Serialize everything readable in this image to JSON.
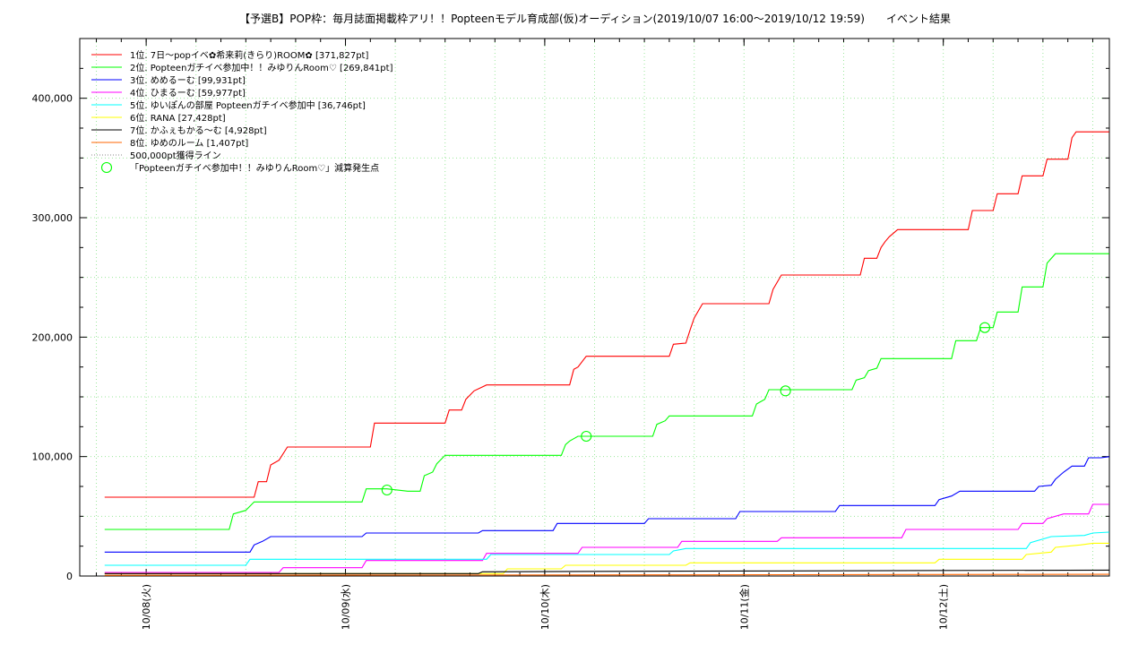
{
  "chart_data": {
    "type": "line",
    "title": "【予選B】POP枠：毎月誌面掲載枠アリ！！Popteenモデル育成部(仮)オーディション(2019/10/07 16:00〜2019/10/12 19:59)　　イベント結果",
    "xlabel": "",
    "ylabel": "",
    "x_range": [
      "2019-10-07 16:00",
      "2019-10-12 20:00"
    ],
    "ylim": [
      0,
      450000
    ],
    "x_ticks": [
      {
        "t": "2019-10-08 00:00",
        "label": "10/08(火)"
      },
      {
        "t": "2019-10-09 00:00",
        "label": "10/09(水)"
      },
      {
        "t": "2019-10-10 00:00",
        "label": "10/10(木)"
      },
      {
        "t": "2019-10-11 00:00",
        "label": "10/11(金)"
      },
      {
        "t": "2019-10-12 00:00",
        "label": "10/12(土)"
      }
    ],
    "y_ticks": [
      {
        "v": 0,
        "label": "0"
      },
      {
        "v": 100000,
        "label": "100,000"
      },
      {
        "v": 200000,
        "label": "200,000"
      },
      {
        "v": 300000,
        "label": "300,000"
      },
      {
        "v": 400000,
        "label": "400,000"
      }
    ],
    "grid": true,
    "legend_position": "top-left",
    "series": [
      {
        "name": "1位. 7日〜popイベ✿希来莉(きらり)ROOM✿ [371,827pt]",
        "color": "#ff0000",
        "points": [
          [
            "10-07 19:00",
            66000
          ],
          [
            "10-08 13:00",
            66000
          ],
          [
            "10-08 13:30",
            79000
          ],
          [
            "10-08 14:30",
            79000
          ],
          [
            "10-08 15:00",
            93000
          ],
          [
            "10-08 16:00",
            97000
          ],
          [
            "10-08 17:00",
            108000
          ],
          [
            "10-09 03:00",
            108000
          ],
          [
            "10-09 03:30",
            128000
          ],
          [
            "10-09 12:00",
            128000
          ],
          [
            "10-09 12:30",
            139000
          ],
          [
            "10-09 14:00",
            139000
          ],
          [
            "10-09 14:30",
            148000
          ],
          [
            "10-09 15:30",
            155000
          ],
          [
            "10-09 17:00",
            160000
          ],
          [
            "10-10 03:00",
            160000
          ],
          [
            "10-10 03:30",
            173000
          ],
          [
            "10-10 04:00",
            175000
          ],
          [
            "10-10 05:00",
            184000
          ],
          [
            "10-10 15:00",
            184000
          ],
          [
            "10-10 15:30",
            194000
          ],
          [
            "10-10 17:00",
            195000
          ],
          [
            "10-10 17:30",
            206000
          ],
          [
            "10-10 18:00",
            216000
          ],
          [
            "10-10 19:00",
            228000
          ],
          [
            "10-11 03:00",
            228000
          ],
          [
            "10-11 03:30",
            240000
          ],
          [
            "10-11 04:30",
            252000
          ],
          [
            "10-11 14:00",
            252000
          ],
          [
            "10-11 14:30",
            266000
          ],
          [
            "10-11 16:00",
            266000
          ],
          [
            "10-11 16:30",
            275000
          ],
          [
            "10-11 17:00",
            280000
          ],
          [
            "10-11 17:30",
            284000
          ],
          [
            "10-11 18:30",
            290000
          ],
          [
            "10-12 03:00",
            290000
          ],
          [
            "10-12 03:30",
            306000
          ],
          [
            "10-12 06:00",
            306000
          ],
          [
            "10-12 06:30",
            320000
          ],
          [
            "10-12 09:00",
            320000
          ],
          [
            "10-12 09:30",
            335000
          ],
          [
            "10-12 12:00",
            335000
          ],
          [
            "10-12 12:30",
            349000
          ],
          [
            "10-12 15:00",
            349000
          ],
          [
            "10-12 15:30",
            367000
          ],
          [
            "10-12 16:00",
            371827
          ],
          [
            "10-12 19:59",
            371827
          ]
        ]
      },
      {
        "name": "2位. Popteenガチイベ参加中！！みゆりんRoom♡ [269,841pt]",
        "color": "#00ff00",
        "points": [
          [
            "10-07 19:00",
            39000
          ],
          [
            "10-08 10:00",
            39000
          ],
          [
            "10-08 10:30",
            52000
          ],
          [
            "10-08 12:00",
            55000
          ],
          [
            "10-08 13:00",
            62000
          ],
          [
            "10-09 02:00",
            62000
          ],
          [
            "10-09 02:30",
            73000
          ],
          [
            "10-09 05:00",
            73000
          ],
          [
            "10-09 07:30",
            71000
          ],
          [
            "10-09 09:00",
            71000
          ],
          [
            "10-09 09:30",
            84000
          ],
          [
            "10-09 10:30",
            87000
          ],
          [
            "10-09 11:00",
            94000
          ],
          [
            "10-09 12:00",
            101000
          ],
          [
            "10-10 02:00",
            101000
          ],
          [
            "10-10 02:30",
            110000
          ],
          [
            "10-10 03:00",
            113000
          ],
          [
            "10-10 04:00",
            117000
          ],
          [
            "10-10 13:00",
            117000
          ],
          [
            "10-10 13:30",
            127000
          ],
          [
            "10-10 14:30",
            130000
          ],
          [
            "10-10 15:00",
            134000
          ],
          [
            "10-11 01:00",
            134000
          ],
          [
            "10-11 01:30",
            144000
          ],
          [
            "10-11 02:30",
            148000
          ],
          [
            "10-11 03:00",
            156000
          ],
          [
            "10-11 13:00",
            156000
          ],
          [
            "10-11 13:30",
            164000
          ],
          [
            "10-11 14:30",
            166000
          ],
          [
            "10-11 15:00",
            172000
          ],
          [
            "10-11 16:00",
            174000
          ],
          [
            "10-11 16:30",
            182000
          ],
          [
            "10-12 01:00",
            182000
          ],
          [
            "10-12 01:30",
            197000
          ],
          [
            "10-12 04:00",
            197000
          ],
          [
            "10-12 04:30",
            208000
          ],
          [
            "10-12 06:00",
            208000
          ],
          [
            "10-12 06:30",
            221000
          ],
          [
            "10-12 09:00",
            221000
          ],
          [
            "10-12 09:30",
            242000
          ],
          [
            "10-12 12:00",
            242000
          ],
          [
            "10-12 12:30",
            262000
          ],
          [
            "10-12 13:30",
            269841
          ],
          [
            "10-12 19:59",
            269841
          ]
        ]
      },
      {
        "name": "3位. めめるーむ [99,931pt]",
        "color": "#0000ff",
        "points": [
          [
            "10-07 19:00",
            20000
          ],
          [
            "10-08 12:30",
            20000
          ],
          [
            "10-08 13:00",
            26000
          ],
          [
            "10-08 14:00",
            29000
          ],
          [
            "10-08 15:00",
            33000
          ],
          [
            "10-09 02:00",
            33000
          ],
          [
            "10-09 02:30",
            36000
          ],
          [
            "10-09 16:00",
            36000
          ],
          [
            "10-09 16:30",
            38000
          ],
          [
            "10-10 01:00",
            38000
          ],
          [
            "10-10 01:30",
            44000
          ],
          [
            "10-10 12:00",
            44000
          ],
          [
            "10-10 12:30",
            48000
          ],
          [
            "10-10 23:00",
            48000
          ],
          [
            "10-10 23:30",
            54000
          ],
          [
            "10-11 11:00",
            54000
          ],
          [
            "10-11 11:30",
            59000
          ],
          [
            "10-11 23:00",
            59000
          ],
          [
            "10-11 23:30",
            64000
          ],
          [
            "10-12 01:00",
            67000
          ],
          [
            "10-12 02:00",
            71000
          ],
          [
            "10-12 11:00",
            71000
          ],
          [
            "10-12 11:30",
            75000
          ],
          [
            "10-12 13:00",
            76000
          ],
          [
            "10-12 13:30",
            81000
          ],
          [
            "10-12 14:30",
            87000
          ],
          [
            "10-12 15:30",
            92000
          ],
          [
            "10-12 17:00",
            92000
          ],
          [
            "10-12 17:30",
            99000
          ],
          [
            "10-12 19:00",
            99000
          ],
          [
            "10-12 19:59",
            99931
          ]
        ]
      },
      {
        "name": "4位. ひまるーむ [59,977pt]",
        "color": "#ff00ff",
        "points": [
          [
            "10-07 19:00",
            3000
          ],
          [
            "10-08 16:00",
            3000
          ],
          [
            "10-08 16:30",
            7000
          ],
          [
            "10-09 02:00",
            7000
          ],
          [
            "10-09 02:30",
            13000
          ],
          [
            "10-09 16:30",
            13000
          ],
          [
            "10-09 17:00",
            19000
          ],
          [
            "10-10 04:00",
            19000
          ],
          [
            "10-10 04:30",
            24000
          ],
          [
            "10-10 16:00",
            24000
          ],
          [
            "10-10 16:30",
            29000
          ],
          [
            "10-11 04:00",
            29000
          ],
          [
            "10-11 04:30",
            32000
          ],
          [
            "10-11 19:00",
            32000
          ],
          [
            "10-11 19:30",
            39000
          ],
          [
            "10-12 09:00",
            39000
          ],
          [
            "10-12 09:30",
            44000
          ],
          [
            "10-12 12:00",
            44000
          ],
          [
            "10-12 12:30",
            48000
          ],
          [
            "10-12 14:30",
            52000
          ],
          [
            "10-12 17:30",
            52000
          ],
          [
            "10-12 18:00",
            59977
          ],
          [
            "10-12 19:59",
            59977
          ]
        ]
      },
      {
        "name": "5位. ゆいぽんの部屋 Popteenガチイベ参加中 [36,746pt]",
        "color": "#00ffff",
        "points": [
          [
            "10-07 19:00",
            9000
          ],
          [
            "10-08 12:00",
            9000
          ],
          [
            "10-08 12:30",
            14000
          ],
          [
            "10-09 17:00",
            14000
          ],
          [
            "10-09 17:30",
            18000
          ],
          [
            "10-10 15:00",
            18000
          ],
          [
            "10-10 15:30",
            21000
          ],
          [
            "10-10 17:00",
            23000
          ],
          [
            "10-12 10:00",
            23000
          ],
          [
            "10-12 10:30",
            28000
          ],
          [
            "10-12 13:00",
            33000
          ],
          [
            "10-12 17:00",
            34000
          ],
          [
            "10-12 18:00",
            36000
          ],
          [
            "10-12 19:59",
            36746
          ]
        ]
      },
      {
        "name": "6位. RANA [27,428pt]",
        "color": "#ffff00",
        "points": [
          [
            "10-07 19:00",
            2000
          ],
          [
            "10-09 19:00",
            2000
          ],
          [
            "10-09 19:30",
            6000
          ],
          [
            "10-10 02:00",
            6000
          ],
          [
            "10-10 02:30",
            9000
          ],
          [
            "10-10 17:00",
            9000
          ],
          [
            "10-10 17:30",
            11000
          ],
          [
            "10-11 23:00",
            11000
          ],
          [
            "10-11 23:30",
            14000
          ],
          [
            "10-12 09:30",
            14000
          ],
          [
            "10-12 10:00",
            18000
          ],
          [
            "10-12 13:00",
            20000
          ],
          [
            "10-12 13:30",
            24000
          ],
          [
            "10-12 16:30",
            26000
          ],
          [
            "10-12 18:00",
            27428
          ],
          [
            "10-12 19:59",
            27428
          ]
        ]
      },
      {
        "name": "7位. かふぇもかる〜む [4,928pt]",
        "color": "#000000",
        "points": [
          [
            "10-07 19:00",
            2000
          ],
          [
            "10-09 16:00",
            2000
          ],
          [
            "10-09 16:30",
            3500
          ],
          [
            "10-10 12:00",
            4000
          ],
          [
            "10-12 19:59",
            4928
          ]
        ]
      },
      {
        "name": "8位. ゆめのルーム [1,407pt]",
        "color": "#ff6600",
        "points": [
          [
            "10-07 19:00",
            600
          ],
          [
            "10-10 12:00",
            1000
          ],
          [
            "10-12 19:59",
            1407
          ]
        ]
      }
    ],
    "threshold_line": {
      "name": "500,000pt獲得ライン",
      "value": 500000,
      "color": "#888888"
    },
    "marker_series": {
      "name": "「Popteenガチイベ参加中！！みゆりんRoom♡」減算発生点",
      "color": "#00ff00",
      "points": [
        [
          "10-09 05:00",
          72000
        ],
        [
          "10-10 05:00",
          117000
        ],
        [
          "10-11 05:00",
          155000
        ],
        [
          "10-12 05:00",
          208000
        ]
      ]
    }
  }
}
